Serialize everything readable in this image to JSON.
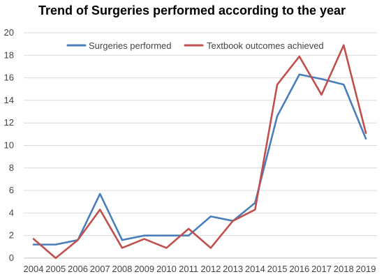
{
  "chart_data": {
    "type": "line",
    "title": "Trend of Surgeries performed according to the year",
    "categories": [
      "2004",
      "2005",
      "2006",
      "2007",
      "2008",
      "2009",
      "2010",
      "2011",
      "2012",
      "2013",
      "2014",
      "2015",
      "2016",
      "2017",
      "2018",
      "2019"
    ],
    "y_ticks": [
      "0",
      "2",
      "4",
      "6",
      "8",
      "10",
      "12",
      "14",
      "16",
      "18",
      "20"
    ],
    "ylim": [
      0,
      20
    ],
    "grid": true,
    "legend_position": "top",
    "series": [
      {
        "name": "Surgeries performed",
        "color": "#4a7ebb",
        "values": [
          1.2,
          1.2,
          1.6,
          5.7,
          1.6,
          2.0,
          2.0,
          2.0,
          3.7,
          3.3,
          4.9,
          12.6,
          16.3,
          15.9,
          15.4,
          10.6
        ]
      },
      {
        "name": "Textbook outcomes achieved",
        "color": "#c0504d",
        "values": [
          1.7,
          0.0,
          1.6,
          4.3,
          0.9,
          1.7,
          0.9,
          2.6,
          0.9,
          3.3,
          4.3,
          15.4,
          17.9,
          14.5,
          18.9,
          11.1
        ]
      }
    ]
  }
}
